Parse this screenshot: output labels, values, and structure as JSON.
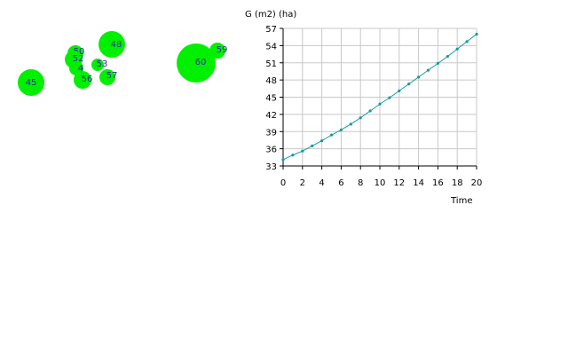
{
  "colors": {
    "tree_fill": "#00f000",
    "tree_label": "#2a2aa0",
    "series": "#1a9a9a",
    "grid": "#c8c8c8",
    "axis": "#000000"
  },
  "stand_map": {
    "trees": [
      {
        "id": "45",
        "label": "45"
      },
      {
        "id": "48",
        "label": "48"
      },
      {
        "id": "50",
        "label": "50"
      },
      {
        "id": "52",
        "label": "52"
      },
      {
        "id": "4",
        "label": "4"
      },
      {
        "id": "53",
        "label": "53"
      },
      {
        "id": "56",
        "label": "56"
      },
      {
        "id": "57",
        "label": "57"
      },
      {
        "id": "59",
        "label": "59"
      },
      {
        "id": "60",
        "label": "60"
      }
    ]
  },
  "chart_data": {
    "type": "line",
    "title": "",
    "ylabel": "G (m2) (ha)",
    "xlabel": "Time",
    "xlim": [
      0,
      20
    ],
    "ylim": [
      33,
      57
    ],
    "xticks": [
      0,
      2,
      4,
      6,
      8,
      10,
      12,
      14,
      16,
      18,
      20
    ],
    "yticks": [
      33,
      36,
      39,
      42,
      45,
      48,
      51,
      54,
      57
    ],
    "grid": true,
    "series": [
      {
        "x": [
          0,
          1,
          2,
          3,
          4,
          5,
          6,
          7,
          8,
          9,
          10,
          11,
          12,
          13,
          14,
          15,
          16,
          17,
          18,
          19,
          20
        ],
        "values": [
          34.1,
          34.9,
          35.6,
          36.5,
          37.4,
          38.4,
          39.3,
          40.3,
          41.4,
          42.6,
          43.8,
          44.9,
          46.1,
          47.3,
          48.5,
          49.7,
          50.9,
          52.1,
          53.4,
          54.7,
          56.0
        ]
      }
    ]
  }
}
